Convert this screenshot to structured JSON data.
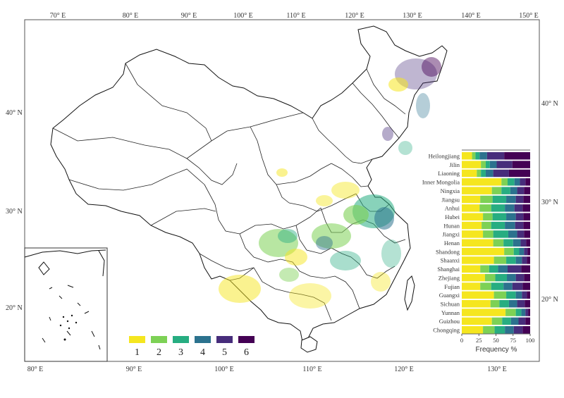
{
  "map": {
    "lon_ticks_top": [
      "70° E",
      "80° E",
      "90° E",
      "100° E",
      "110° E",
      "120° E",
      "130° E",
      "140° E",
      "150° E"
    ],
    "lon_ticks_bottom": [
      "80° E",
      "90° E",
      "100° E",
      "110° E",
      "120° E",
      "130° E"
    ],
    "lat_ticks_left": [
      "40° N",
      "30° N",
      "20° N"
    ],
    "lat_ticks_right": [
      "40° N",
      "30° N",
      "20° N"
    ]
  },
  "legend": {
    "classes": [
      {
        "label": "1",
        "color": "#f5e61f"
      },
      {
        "label": "2",
        "color": "#7dd155"
      },
      {
        "label": "3",
        "color": "#27ad81"
      },
      {
        "label": "4",
        "color": "#2c728e"
      },
      {
        "label": "5",
        "color": "#472d7b"
      },
      {
        "label": "6",
        "color": "#440154"
      }
    ]
  },
  "chart_data": {
    "type": "bar",
    "orientation": "horizontal",
    "stacked": true,
    "xlabel": "Frequency %",
    "xlim": [
      0,
      100
    ],
    "xticks": [
      "0",
      "25",
      "50",
      "75",
      "100"
    ],
    "categories": [
      "Heilongjiang",
      "Jilin",
      "Liaoning",
      "Inner Mongolia",
      "Ningxia",
      "Jiangsu",
      "Anhui",
      "Hubei",
      "Hunan",
      "Jiangxi",
      "Henan",
      "Shandong",
      "Shaanxi",
      "Shanghai",
      "Zhejiang",
      "Fujian",
      "Guangxi",
      "Sichuan",
      "Yunnan",
      "Guizhou",
      "Chongqing"
    ],
    "series": [
      {
        "name": "1",
        "color": "#f5e61f",
        "values": [
          15,
          28,
          22,
          58,
          44,
          27,
          26,
          31,
          29,
          31,
          46,
          62,
          47,
          27,
          34,
          27,
          47,
          42,
          64,
          44,
          31
        ]
      },
      {
        "name": "2",
        "color": "#7dd155",
        "values": [
          5,
          7,
          6,
          9,
          14,
          18,
          17,
          14,
          14,
          15,
          15,
          14,
          18,
          13,
          15,
          16,
          18,
          13,
          15,
          15,
          17
        ]
      },
      {
        "name": "3",
        "color": "#27ad81",
        "values": [
          6,
          6,
          7,
          10,
          13,
          20,
          20,
          20,
          20,
          22,
          14,
          8,
          14,
          13,
          17,
          18,
          14,
          14,
          8,
          13,
          15
        ]
      },
      {
        "name": "4",
        "color": "#2c728e",
        "values": [
          11,
          10,
          11,
          8,
          10,
          14,
          14,
          14,
          15,
          13,
          11,
          7,
          9,
          14,
          13,
          13,
          9,
          12,
          6,
          11,
          13
        ]
      },
      {
        "name": "5",
        "color": "#472d7b",
        "values": [
          25,
          23,
          23,
          8,
          10,
          11,
          12,
          11,
          12,
          10,
          8,
          5,
          7,
          20,
          12,
          15,
          7,
          11,
          4,
          10,
          13
        ]
      },
      {
        "name": "6",
        "color": "#440154",
        "values": [
          38,
          26,
          31,
          7,
          9,
          10,
          11,
          10,
          10,
          9,
          6,
          4,
          5,
          13,
          9,
          11,
          5,
          8,
          3,
          7,
          11
        ]
      }
    ]
  }
}
